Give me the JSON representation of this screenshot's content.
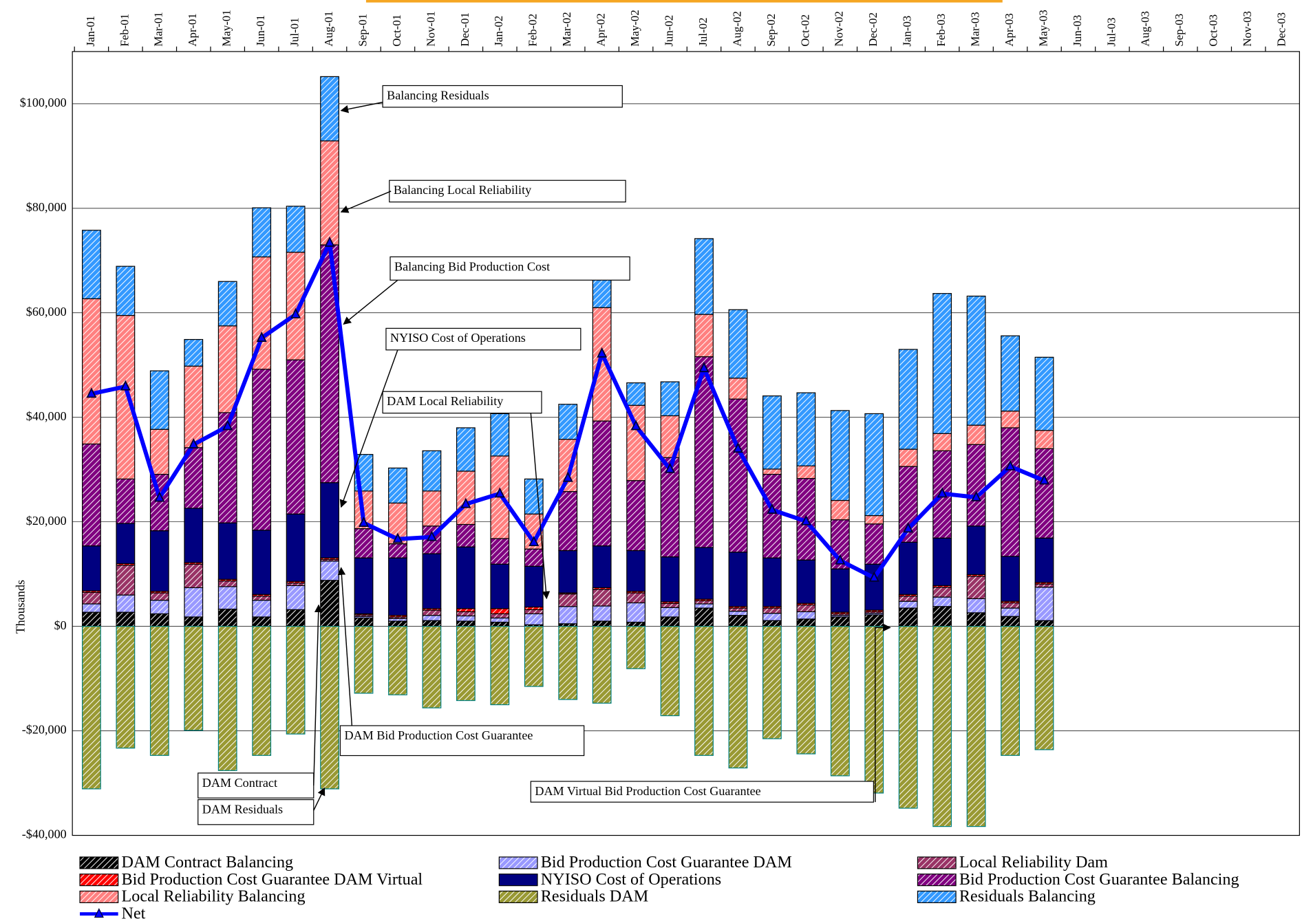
{
  "chart_data": {
    "type": "bar",
    "stacked": true,
    "y_label": "Thousands",
    "categories": [
      "Jan-01",
      "Feb-01",
      "Mar-01",
      "Apr-01",
      "May-01",
      "Jun-01",
      "Jul-01",
      "Aug-01",
      "Sep-01",
      "Oct-01",
      "Nov-01",
      "Dec-01",
      "Jan-02",
      "Feb-02",
      "Mar-02",
      "Apr-02",
      "May-02",
      "Jun-02",
      "Jul-02",
      "Aug-02",
      "Sep-02",
      "Oct-02",
      "Nov-02",
      "Dec-02",
      "Jan-03",
      "Feb-03",
      "Mar-03",
      "Apr-03",
      "May-03",
      "Jun-03",
      "Jul-03",
      "Aug-03",
      "Sep-03",
      "Oct-03",
      "Nov-03",
      "Dec-03"
    ],
    "ylim": [
      -40000,
      110000
    ],
    "yticks": [
      {
        "value": -40000,
        "label": "-$40,000"
      },
      {
        "value": -20000,
        "label": "-$20,000"
      },
      {
        "value": 0,
        "label": "$0"
      },
      {
        "value": 20000,
        "label": "$20,000"
      },
      {
        "value": 40000,
        "label": "$40,000"
      },
      {
        "value": 60000,
        "label": "$60,000"
      },
      {
        "value": 80000,
        "label": "$80,000"
      },
      {
        "value": 100000,
        "label": "$100,000"
      }
    ],
    "grid": true,
    "series": [
      {
        "name": "DAM Contract Balancing",
        "color": "#000000",
        "pattern": "hatch",
        "values": [
          2700,
          2700,
          2400,
          1800,
          3300,
          1800,
          3200,
          8800,
          1600,
          1000,
          1100,
          1000,
          800,
          300,
          500,
          1000,
          800,
          1800,
          3500,
          2100,
          1100,
          1400,
          1800,
          2200,
          3500,
          3800,
          2600,
          1900,
          1100,
          null,
          null,
          null,
          null,
          null,
          null,
          null
        ]
      },
      {
        "name": "Bid Production Cost Guarantee DAM",
        "color": "#9999ff",
        "pattern": "hatch",
        "values": [
          1600,
          3300,
          2600,
          5600,
          4300,
          3200,
          4600,
          3700,
          300,
          500,
          1000,
          1000,
          800,
          2100,
          3300,
          2900,
          3700,
          1800,
          800,
          800,
          1400,
          1400,
          300,
          300,
          1300,
          1800,
          2700,
          1600,
          6400,
          null,
          null,
          null,
          null,
          null,
          null,
          null
        ]
      },
      {
        "name": "Local Reliability Dam",
        "color": "#993366",
        "pattern": "hatch",
        "values": [
          2200,
          5700,
          1400,
          4500,
          1100,
          800,
          500,
          300,
          300,
          300,
          1000,
          800,
          800,
          800,
          2400,
          3200,
          1900,
          800,
          600,
          600,
          1000,
          1300,
          300,
          300,
          1000,
          1900,
          4300,
          1000,
          600,
          null,
          null,
          null,
          null,
          null,
          null,
          null
        ]
      },
      {
        "name": "Bid Production Cost Guarantee DAM Virtual",
        "color": "#ff0000",
        "pattern": "hatch",
        "values": [
          300,
          300,
          300,
          300,
          300,
          300,
          300,
          300,
          200,
          300,
          300,
          600,
          1000,
          500,
          200,
          300,
          300,
          300,
          300,
          300,
          300,
          300,
          300,
          300,
          300,
          300,
          300,
          300,
          300,
          null,
          null,
          null,
          null,
          null,
          null,
          null
        ]
      },
      {
        "name": "NYISO Cost of Operations",
        "color": "#000080",
        "pattern": "solid",
        "values": [
          8600,
          7700,
          11600,
          10400,
          10800,
          12300,
          12900,
          14400,
          10700,
          11000,
          10500,
          11800,
          8500,
          7800,
          8100,
          8000,
          7800,
          8600,
          9900,
          10400,
          9300,
          8300,
          8300,
          8800,
          10000,
          9100,
          9300,
          8600,
          8500,
          null,
          null,
          null,
          null,
          null,
          null,
          null
        ]
      },
      {
        "name": "Bid Production Cost Guarantee Balancing",
        "color": "#800080",
        "pattern": "hatch",
        "values": [
          19500,
          8500,
          10800,
          11600,
          21100,
          30800,
          29500,
          45500,
          5600,
          2700,
          5300,
          4300,
          4900,
          3300,
          11300,
          23900,
          13400,
          19000,
          36500,
          29300,
          16000,
          15600,
          9400,
          7700,
          14500,
          16700,
          15600,
          24600,
          17100,
          null,
          null,
          null,
          null,
          null,
          null,
          null
        ]
      },
      {
        "name": "Local Reliability Balancing",
        "color": "#ff8080",
        "pattern": "hatch",
        "values": [
          27800,
          31300,
          8600,
          15600,
          16600,
          21500,
          20600,
          19900,
          7200,
          7800,
          6700,
          10200,
          15800,
          6700,
          10000,
          21700,
          14400,
          8000,
          8100,
          4000,
          1000,
          2400,
          3700,
          1600,
          3300,
          3300,
          3700,
          3200,
          3500,
          null,
          null,
          null,
          null,
          null,
          null,
          null
        ]
      },
      {
        "name": "Residuals DAM",
        "color": "#999933",
        "pattern": "hatch",
        "values": [
          -31100,
          -23300,
          -24700,
          -19900,
          -27600,
          -24700,
          -20600,
          -31100,
          -12800,
          -13100,
          -15600,
          -14200,
          -15000,
          -11500,
          -14000,
          -14700,
          -8100,
          -17100,
          -24700,
          -27100,
          -21500,
          -24400,
          -28600,
          -31900,
          -34800,
          -38300,
          -38300,
          -24700,
          -23600,
          null,
          null,
          null,
          null,
          null,
          null,
          null
        ]
      },
      {
        "name": "Residuals Balancing",
        "color": "#3399ff",
        "pattern": "hatch",
        "values": [
          13100,
          9400,
          11200,
          5100,
          8500,
          9400,
          8800,
          12300,
          7000,
          6700,
          7700,
          8300,
          8100,
          6700,
          6700,
          6200,
          4300,
          6500,
          14500,
          13100,
          14000,
          14000,
          17200,
          19500,
          19100,
          26800,
          24700,
          14400,
          14000,
          null,
          null,
          null,
          null,
          null,
          null,
          null
        ]
      },
      {
        "name": "Net",
        "type": "line",
        "color": "#0000ff",
        "values": [
          44500,
          45900,
          24600,
          34800,
          38300,
          55200,
          59700,
          73400,
          19800,
          16700,
          17100,
          23400,
          25400,
          16100,
          28400,
          52200,
          38300,
          30100,
          49400,
          34000,
          22300,
          20100,
          12600,
          9300,
          18700,
          25400,
          24700,
          30600,
          27900,
          null,
          null,
          null,
          null,
          null,
          null,
          null
        ]
      }
    ],
    "annotations": [
      "Balancing Residuals",
      "Balancing Local Reliability",
      "Balancing Bid Production Cost",
      "NYISO Cost of Operations",
      "DAM Local Reliability",
      "DAM Bid Production Cost Guarantee",
      "DAM Contract",
      "DAM Residuals",
      "DAM Virtual Bid Production Cost Guarantee"
    ]
  }
}
